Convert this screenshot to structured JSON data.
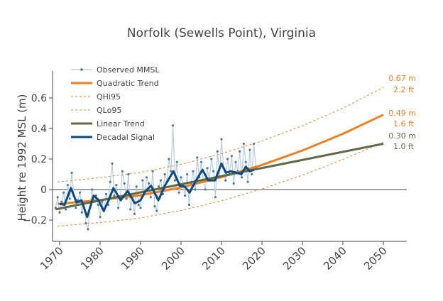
{
  "chart_data": {
    "type": "line",
    "title": "Norfolk (Sewells Point), Virginia",
    "ylabel": "Height re 1992 MSL (m)",
    "xlabel": "",
    "xlim": [
      1968,
      2056
    ],
    "ylim": [
      -0.34,
      0.78
    ],
    "x_ticks": [
      1970,
      1980,
      1990,
      2000,
      2010,
      2020,
      2030,
      2040,
      2050
    ],
    "y_ticks": [
      -0.2,
      0,
      0.2,
      0.4,
      0.6
    ],
    "y_tick_labels": [
      "−0.2",
      "0",
      "0.2",
      "0.4",
      "0.6"
    ],
    "zero_line": true,
    "grid": false,
    "legend_placement": "top-left",
    "colors": {
      "observed": "#4a78a8",
      "observed_line": "#b8cde0",
      "quadratic": "#f07f23",
      "linear": "#5f6b45",
      "decadal": "#0d4a80"
    },
    "legend": [
      "Observed MMSL",
      "Quadratic Trend",
      "QHi95",
      "QLo95",
      "Linear Trend",
      "Decadal Signal"
    ],
    "observed": {
      "name": "Observed MMSL",
      "x_start": 1969,
      "x_step": 0.5,
      "values": [
        -0.12,
        -0.05,
        -0.15,
        -0.08,
        -0.02,
        -0.13,
        0.03,
        -0.06,
        0.11,
        -0.04,
        -0.12,
        -0.07,
        -0.02,
        -0.15,
        -0.09,
        -0.22,
        -0.26,
        -0.12,
        0.0,
        -0.08,
        -0.04,
        -0.1,
        -0.18,
        -0.08,
        -0.14,
        -0.03,
        -0.1,
        0.05,
        0.17,
        -0.04,
        0.03,
        -0.12,
        -0.05,
        0.12,
        0.04,
        -0.06,
        0.1,
        -0.13,
        -0.05,
        -0.16,
        0.02,
        -0.1,
        -0.12,
        0.06,
        -0.02,
        0.08,
        0.04,
        -0.05,
        0.12,
        -0.11,
        -0.14,
        0.02,
        0.06,
        -0.03,
        0.1,
        0.05,
        0.2,
        0.12,
        0.42,
        0.06,
        0.18,
        -0.02,
        0.08,
        0.03,
        -0.04,
        0.1,
        -0.1,
        0.04,
        0.12,
        0.0,
        0.21,
        0.08,
        0.18,
        0.05,
        0.0,
        0.14,
        0.06,
        0.2,
        0.12,
        -0.05,
        0.25,
        0.08,
        0.33,
        0.14,
        0.06,
        0.2,
        0.1,
        0.22,
        0.04,
        0.18,
        0.12,
        0.25,
        0.08,
        0.3,
        0.18,
        0.05,
        0.26,
        0.1,
        0.3,
        0.14
      ]
    },
    "decadal": {
      "name": "Decadal Signal",
      "x": [
        1970,
        1971.2,
        1972.8,
        1974.2,
        1975.4,
        1976.8,
        1978.4,
        1979.5,
        1980.9,
        1982.1,
        1983.3,
        1985.1,
        1986.8,
        1988.6,
        1990,
        1991.2,
        1992.6,
        1994.4,
        1996,
        1998.1,
        1999.7,
        2000.9,
        2002.1,
        2003.5,
        2005.3,
        2006.7,
        2008.4,
        2010,
        2011.1,
        2012.3,
        2013.7,
        2014.9,
        2016,
        2017,
        2018
      ],
      "y": [
        -0.093,
        -0.1,
        0.01,
        -0.085,
        -0.07,
        -0.18,
        -0.04,
        -0.065,
        -0.14,
        -0.07,
        0.01,
        -0.07,
        -0.01,
        -0.09,
        -0.07,
        -0.01,
        0.025,
        -0.07,
        0.025,
        0.12,
        0.025,
        0.02,
        -0.02,
        0.05,
        0.13,
        0.06,
        0.06,
        0.17,
        0.11,
        0.12,
        0.11,
        0.1,
        0.15,
        0.12,
        0.13
      ]
    },
    "linear": {
      "name": "Linear Trend",
      "x": [
        1969,
        2050
      ],
      "y": [
        -0.13,
        0.3
      ]
    },
    "quadratic": {
      "name": "Quadratic Trend",
      "x": [
        1969.5,
        1980,
        1990,
        2000,
        2010,
        2020,
        2030,
        2040,
        2050
      ],
      "y": [
        -0.095,
        -0.069,
        -0.037,
        0.014,
        0.081,
        0.161,
        0.256,
        0.365,
        0.49
      ]
    },
    "qhi95": {
      "name": "QHi95",
      "x": [
        1969.5,
        1980,
        1990,
        2000,
        2010,
        2020,
        2030,
        2040,
        2050
      ],
      "y": [
        0.05,
        0.078,
        0.112,
        0.165,
        0.235,
        0.318,
        0.418,
        0.533,
        0.67
      ]
    },
    "qlo95": {
      "name": "QLo95",
      "x": [
        1969.5,
        1980,
        1990,
        2000,
        2010,
        2020,
        2030,
        2040,
        2050
      ],
      "y": [
        -0.24,
        -0.216,
        -0.186,
        -0.137,
        -0.073,
        0.004,
        0.094,
        0.197,
        0.31
      ]
    },
    "annotations": [
      {
        "m": "0.67 m",
        "ft": "2.2 ft",
        "series": "qhi95"
      },
      {
        "m": "0.49 m",
        "ft": "1.6 ft",
        "series": "quadratic"
      },
      {
        "m": "0.30 m",
        "ft": "1.0 ft",
        "series": "linear"
      }
    ]
  }
}
